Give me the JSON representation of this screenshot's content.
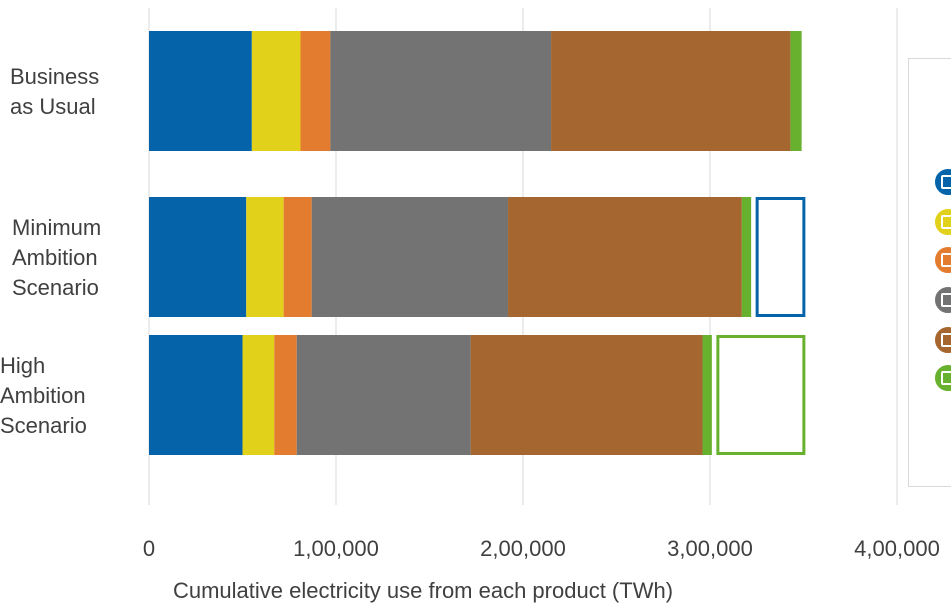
{
  "chart_data": {
    "type": "bar",
    "orientation": "horizontal",
    "stacked": true,
    "title": "",
    "xlabel": "Cumulative electricity use from each product (TWh)",
    "ylabel": "",
    "xlim": [
      0,
      400000
    ],
    "x_ticks": [
      {
        "value": 0,
        "label": "0"
      },
      {
        "value": 100000,
        "label": "1,00,000"
      },
      {
        "value": 200000,
        "label": "2,00,000"
      },
      {
        "value": 300000,
        "label": "3,00,000"
      },
      {
        "value": 400000,
        "label": "4,00,000"
      }
    ],
    "grid": true,
    "legend_position": "right",
    "categories": [
      [
        "Business",
        "as Usual"
      ],
      [
        "Minimum",
        "Ambition",
        "Scenario"
      ],
      [
        "High",
        "Ambition",
        "Scenario"
      ]
    ],
    "series": [
      {
        "color": "#0563aa",
        "icon": "air-conditioner-icon",
        "values": [
          55000,
          52000,
          50000
        ]
      },
      {
        "color": "#e2d11b",
        "icon": "refrigerator-icon",
        "values": [
          26000,
          20000,
          17000
        ]
      },
      {
        "color": "#e47c30",
        "icon": "water-heater-icon",
        "values": [
          16000,
          15000,
          12000
        ]
      },
      {
        "color": "#737373",
        "icon": "fan-icon",
        "values": [
          118000,
          105000,
          93000
        ]
      },
      {
        "color": "#a5662f",
        "icon": "motor-icon",
        "values": [
          128000,
          125000,
          124000
        ]
      },
      {
        "color": "#68b12e",
        "icon": "battery-icon",
        "values": [
          6000,
          5000,
          5000
        ]
      }
    ],
    "savings": [
      {
        "category_index": 1,
        "value": 29000,
        "outline_color": "#0563aa"
      },
      {
        "category_index": 2,
        "value": 50000,
        "outline_color": "#68b12e"
      }
    ]
  }
}
